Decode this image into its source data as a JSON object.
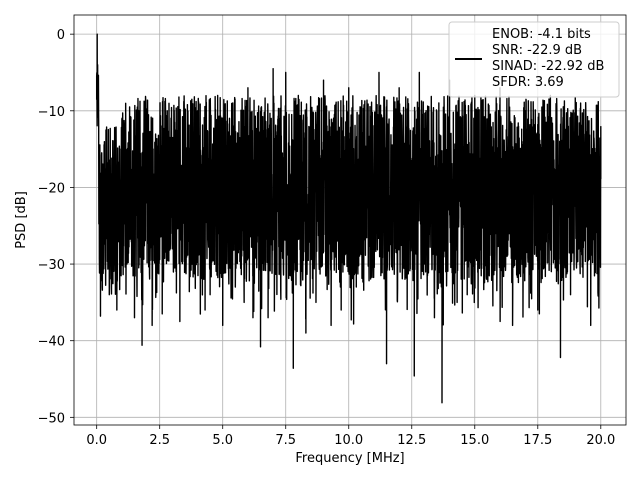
{
  "chart_data": {
    "type": "line",
    "title": "",
    "xlabel": "Frequency [MHz]",
    "ylabel": "PSD [dB]",
    "xlim": [
      -0.9,
      21.0
    ],
    "ylim": [
      -51.0,
      2.5
    ],
    "xticks": [
      0.0,
      2.5,
      5.0,
      7.5,
      10.0,
      12.5,
      15.0,
      17.5,
      20.0
    ],
    "xtick_labels": [
      "0.0",
      "2.5",
      "5.0",
      "7.5",
      "10.0",
      "12.5",
      "15.0",
      "17.5",
      "20.0"
    ],
    "yticks": [
      0,
      -10,
      -20,
      -30,
      -40,
      -50
    ],
    "ytick_labels": [
      "0",
      "−10",
      "−20",
      "−30",
      "−40",
      "−50"
    ],
    "grid": true,
    "legend_position": "top-right",
    "line_color": "#000000",
    "legend_lines": [
      "ENOB: -4.1 bits",
      "SNR: -22.9 dB",
      "SINAD: -22.92 dB",
      "SFDR: 3.69"
    ],
    "series": [
      {
        "points": [
          [
            0.0,
            -5.5
          ],
          [
            0.02,
            0.0
          ],
          [
            0.05,
            -6.5
          ],
          [
            0.08,
            -12.0
          ],
          [
            0.12,
            -24.0
          ],
          [
            0.15,
            -36.8
          ],
          [
            0.18,
            -20.0
          ],
          [
            0.22,
            -33.0
          ],
          [
            0.28,
            -22.0
          ],
          [
            0.35,
            -29.0
          ],
          [
            0.5,
            -34.0
          ],
          [
            0.8,
            -36.0
          ],
          [
            1.0,
            -15.0
          ],
          [
            1.2,
            -30.0
          ],
          [
            1.5,
            -37.0
          ],
          [
            1.8,
            -40.6
          ],
          [
            2.0,
            -12.0
          ],
          [
            2.2,
            -38.0
          ],
          [
            2.6,
            -36.5
          ],
          [
            2.8,
            -10.0
          ],
          [
            3.0,
            -28.0
          ],
          [
            3.3,
            -37.5
          ],
          [
            3.7,
            -30.0
          ],
          [
            4.0,
            -10.0
          ],
          [
            4.3,
            -36.0
          ],
          [
            4.5,
            -34.0
          ],
          [
            4.8,
            -8.0
          ],
          [
            5.0,
            -38.0
          ],
          [
            5.5,
            -33.0
          ],
          [
            6.0,
            -7.0
          ],
          [
            6.2,
            -37.0
          ],
          [
            6.5,
            -40.8
          ],
          [
            6.8,
            -37.0
          ],
          [
            7.0,
            -4.5
          ],
          [
            7.3,
            -33.0
          ],
          [
            7.5,
            -5.0
          ],
          [
            7.8,
            -43.6
          ],
          [
            8.0,
            -8.0
          ],
          [
            8.3,
            -39.0
          ],
          [
            8.7,
            -35.0
          ],
          [
            9.0,
            -6.0
          ],
          [
            9.3,
            -38.0
          ],
          [
            9.7,
            -36.0
          ],
          [
            10.0,
            -7.0
          ],
          [
            10.3,
            -33.0
          ],
          [
            10.8,
            -29.0
          ],
          [
            11.2,
            -5.0
          ],
          [
            11.5,
            -43.0
          ],
          [
            12.0,
            -7.0
          ],
          [
            12.3,
            -29.0
          ],
          [
            12.6,
            -44.6
          ],
          [
            12.8,
            -5.0
          ],
          [
            13.0,
            -30.0
          ],
          [
            13.4,
            -37.0
          ],
          [
            13.7,
            -48.1
          ],
          [
            14.0,
            -6.0
          ],
          [
            14.3,
            -35.0
          ],
          [
            14.7,
            -34.0
          ],
          [
            15.0,
            -8.0
          ],
          [
            15.5,
            -32.0
          ],
          [
            16.0,
            -7.0
          ],
          [
            16.5,
            -38.0
          ],
          [
            17.0,
            -10.0
          ],
          [
            17.5,
            -36.0
          ],
          [
            18.0,
            -8.0
          ],
          [
            18.4,
            -42.2
          ],
          [
            18.8,
            -34.0
          ],
          [
            19.2,
            -9.0
          ],
          [
            19.6,
            -38.0
          ],
          [
            20.0,
            -12.0
          ]
        ]
      }
    ]
  }
}
